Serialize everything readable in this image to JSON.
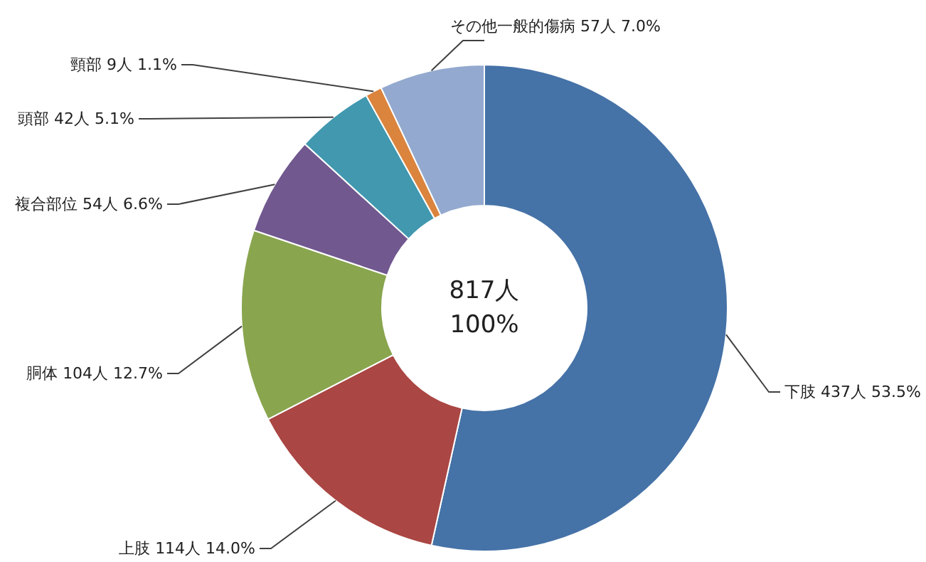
{
  "chart_data": {
    "type": "donut",
    "categories": [
      "下肢",
      "上肢",
      "胴体",
      "複合部位",
      "頭部",
      "頸部",
      "その他一般的傷病"
    ],
    "values": [
      437,
      114,
      104,
      54,
      42,
      9,
      57
    ],
    "value_labels": [
      "437人 53.5%",
      "114人 14.0%",
      "104人 12.7%",
      "54人 6.6%",
      "42人 5.1%",
      "9人 1.1%",
      "57人 7.0%"
    ],
    "colors": [
      "#4572a7",
      "#aa4643",
      "#89a54e",
      "#71588f",
      "#4198af",
      "#db843d",
      "#93a9cf"
    ],
    "annotations": [
      "817人",
      "100%"
    ],
    "legend": false
  }
}
